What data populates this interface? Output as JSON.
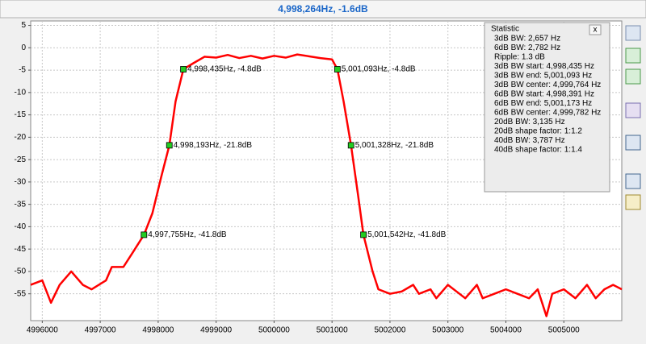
{
  "chart_data": {
    "type": "line",
    "title": "4,998,264Hz, -1.6dB",
    "xlim": [
      4995800,
      5006000
    ],
    "ylim": [
      -61,
      6
    ],
    "xticks": [
      4996000,
      4997000,
      4998000,
      4999000,
      5000000,
      5001000,
      5002000,
      5003000,
      5004000,
      5005000
    ],
    "yticks": [
      5,
      0,
      -5,
      -10,
      -15,
      -20,
      -25,
      -30,
      -35,
      -40,
      -45,
      -50,
      -55
    ],
    "grid": true,
    "series": [
      {
        "color": "#ff0000",
        "x": [
          4995800,
          4996000,
          4996150,
          4996300,
          4996500,
          4996700,
          4996850,
          4997100,
          4997200,
          4997400,
          4997550,
          4997755,
          4997900,
          4998050,
          4998193,
          4998300,
          4998435,
          4998600,
          4998800,
          4999000,
          4999200,
          4999400,
          4999600,
          4999800,
          5000000,
          5000200,
          5000400,
          5000600,
          5000800,
          5001000,
          5001093,
          5001200,
          5001328,
          5001450,
          5001542,
          5001700,
          5001800,
          5002000,
          5002200,
          5002400,
          5002500,
          5002700,
          5002800,
          5003000,
          5003200,
          5003300,
          5003500,
          5003600,
          5003800,
          5004000,
          5004200,
          5004400,
          5004550,
          5004700,
          5004800,
          5005000,
          5005200,
          5005400,
          5005550,
          5005700,
          5005850,
          5006000
        ],
        "values": [
          -53,
          -52,
          -57,
          -53,
          -50,
          -53,
          -54,
          -52,
          -49,
          -49,
          -46,
          -41.8,
          -37,
          -29,
          -21.8,
          -12,
          -4.8,
          -3.5,
          -2,
          -2.2,
          -1.6,
          -2.3,
          -1.8,
          -2.4,
          -1.8,
          -2.2,
          -1.5,
          -1.9,
          -2.3,
          -2.6,
          -4.8,
          -12,
          -21.8,
          -33,
          -41.8,
          -50,
          -54,
          -55,
          -54.5,
          -53,
          -55,
          -54,
          -56,
          -53,
          -55,
          -56,
          -53,
          -56,
          -55,
          -54,
          -55,
          -56,
          -54,
          -60,
          -55,
          -54,
          -56,
          -53,
          -56,
          -54,
          -53,
          -54
        ]
      }
    ],
    "markers": [
      {
        "x": 4998435,
        "y": -4.8,
        "label": "4,998,435Hz, -4.8dB"
      },
      {
        "x": 5001093,
        "y": -4.8,
        "label": "5,001,093Hz, -4.8dB"
      },
      {
        "x": 4998193,
        "y": -21.8,
        "label": "4,998,193Hz, -21.8dB"
      },
      {
        "x": 5001328,
        "y": -21.8,
        "label": "5,001,328Hz, -21.8dB"
      },
      {
        "x": 4997755,
        "y": -41.8,
        "label": "4,997,755Hz, -41.8dB"
      },
      {
        "x": 5001542,
        "y": -41.8,
        "label": "5,001,542Hz, -41.8dB"
      }
    ]
  },
  "statistic": {
    "title": "Statistic",
    "close": "x",
    "lines": [
      "3dB BW: 2,657 Hz",
      "6dB BW: 2,782 Hz",
      "Ripple: 1.3 dB",
      "3dB BW start: 4,998,435 Hz",
      "3dB BW end: 5,001,093 Hz",
      "3dB BW center: 4,999,764 Hz",
      "6dB BW start: 4,998,391 Hz",
      "6dB BW end: 5,001,173 Hz",
      "6dB BW center: 4,999,782 Hz",
      "20dB BW: 3,135 Hz",
      "20dB shape factor: 1:1.2",
      "40dB BW: 3,787 Hz",
      "40dB shape factor: 1:1.4"
    ]
  }
}
